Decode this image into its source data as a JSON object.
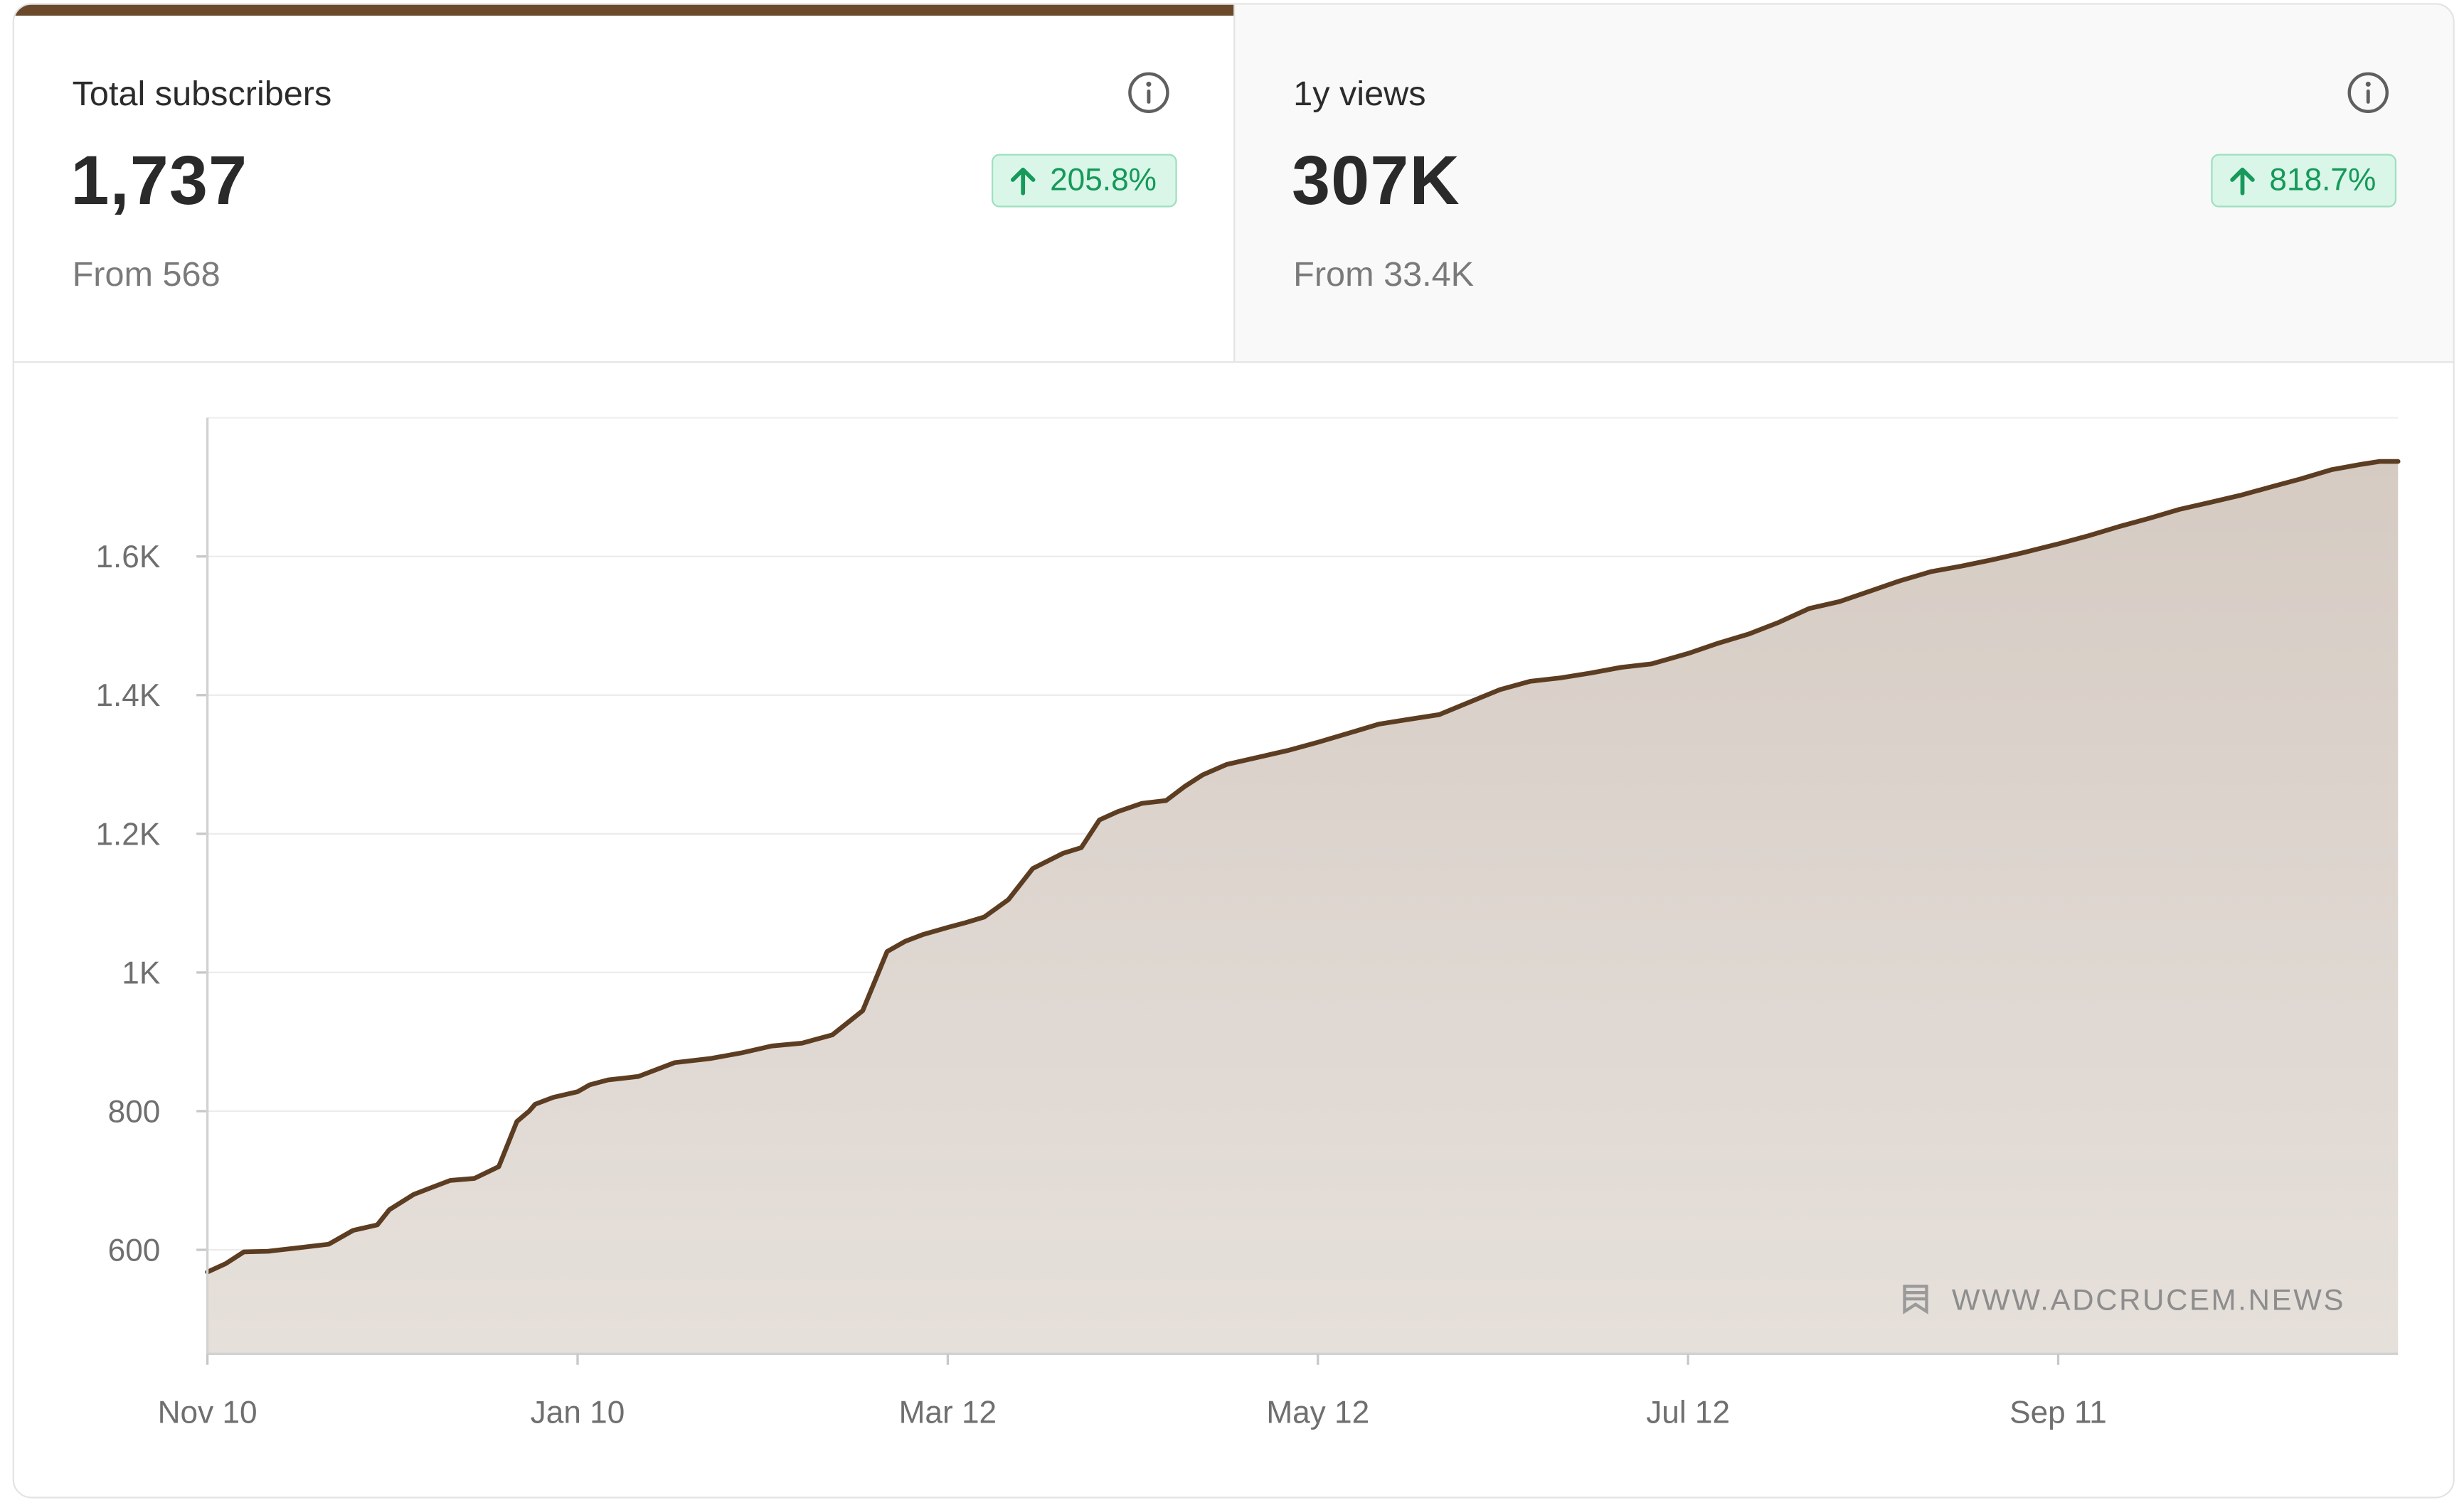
{
  "tabs": [
    {
      "label": "Total subscribers",
      "value": "1,737",
      "from": "From 568",
      "delta": "205.8%",
      "active": true
    },
    {
      "label": "1y views",
      "value": "307K",
      "from": "From 33.4K",
      "delta": "818.7%",
      "active": false
    }
  ],
  "colors": {
    "accent": "#6b4a2c",
    "area_fill_top": "#d5cbc3",
    "area_fill_bottom": "#e6e0db",
    "badge_bg": "#d9f6e8",
    "badge_text": "#16995a"
  },
  "icons": {
    "info": "info-circle-icon",
    "arrow": "arrow-up-icon",
    "watermark": "bookmark-icon"
  },
  "watermark": "WWW.ADCRUCEM.NEWS",
  "chart_data": {
    "type": "area",
    "title": "",
    "xlabel": "",
    "ylabel": "",
    "ylim": [
      450,
      1800
    ],
    "grid": true,
    "y_ticks": [
      600,
      800,
      1000,
      1200,
      1400,
      1600
    ],
    "y_tick_labels": [
      "600",
      "800",
      "1K",
      "1.2K",
      "1.4K",
      "1.6K"
    ],
    "x_ticks": [
      "2022-11-10",
      "2023-01-10",
      "2023-03-12",
      "2023-05-12",
      "2023-07-12",
      "2023-09-11"
    ],
    "x_tick_labels": [
      "Nov 10",
      "Jan 10",
      "Mar 12",
      "May 12",
      "Jul 12",
      "Sep 11"
    ],
    "series": [
      {
        "x": [
          "2022-11-10",
          "2022-11-13",
          "2022-11-16",
          "2022-11-20",
          "2022-11-25",
          "2022-11-30",
          "2022-12-04",
          "2022-12-08",
          "2022-12-10",
          "2022-12-14",
          "2022-12-17",
          "2022-12-20",
          "2022-12-24",
          "2022-12-28",
          "2022-12-31",
          "2023-01-02",
          "2023-01-03",
          "2023-01-06",
          "2023-01-10",
          "2023-01-12",
          "2023-01-15",
          "2023-01-20",
          "2023-01-26",
          "2023-02-01",
          "2023-02-06",
          "2023-02-11",
          "2023-02-16",
          "2023-02-21",
          "2023-02-26",
          "2023-03-02",
          "2023-03-05",
          "2023-03-08",
          "2023-03-10",
          "2023-03-12",
          "2023-03-15",
          "2023-03-18",
          "2023-03-22",
          "2023-03-26",
          "2023-03-31",
          "2023-04-03",
          "2023-04-06",
          "2023-04-09",
          "2023-04-13",
          "2023-04-17",
          "2023-04-20",
          "2023-04-23",
          "2023-04-27",
          "2023-05-02",
          "2023-05-07",
          "2023-05-12",
          "2023-05-17",
          "2023-05-22",
          "2023-05-27",
          "2023-06-01",
          "2023-06-06",
          "2023-06-11",
          "2023-06-16",
          "2023-06-21",
          "2023-06-26",
          "2023-07-01",
          "2023-07-06",
          "2023-07-12",
          "2023-07-17",
          "2023-07-22",
          "2023-07-27",
          "2023-08-01",
          "2023-08-06",
          "2023-08-11",
          "2023-08-16",
          "2023-08-21",
          "2023-08-26",
          "2023-08-31",
          "2023-09-05",
          "2023-09-11",
          "2023-09-16",
          "2023-09-21",
          "2023-09-26",
          "2023-10-01",
          "2023-10-06",
          "2023-10-11",
          "2023-10-16",
          "2023-10-21",
          "2023-10-26",
          "2023-10-31",
          "2023-11-03",
          "2023-11-06"
        ],
        "values": [
          568,
          580,
          597,
          598,
          603,
          608,
          628,
          636,
          658,
          680,
          690,
          700,
          703,
          720,
          785,
          800,
          810,
          820,
          828,
          838,
          845,
          850,
          870,
          876,
          884,
          894,
          898,
          910,
          945,
          1030,
          1045,
          1055,
          1060,
          1065,
          1072,
          1080,
          1105,
          1150,
          1172,
          1180,
          1220,
          1232,
          1244,
          1248,
          1268,
          1285,
          1300,
          1310,
          1320,
          1332,
          1345,
          1358,
          1365,
          1372,
          1390,
          1408,
          1420,
          1425,
          1432,
          1440,
          1445,
          1460,
          1475,
          1488,
          1505,
          1525,
          1535,
          1550,
          1565,
          1578,
          1586,
          1595,
          1605,
          1618,
          1630,
          1643,
          1655,
          1668,
          1678,
          1688,
          1700,
          1712,
          1725,
          1733,
          1737,
          1737
        ]
      }
    ]
  }
}
